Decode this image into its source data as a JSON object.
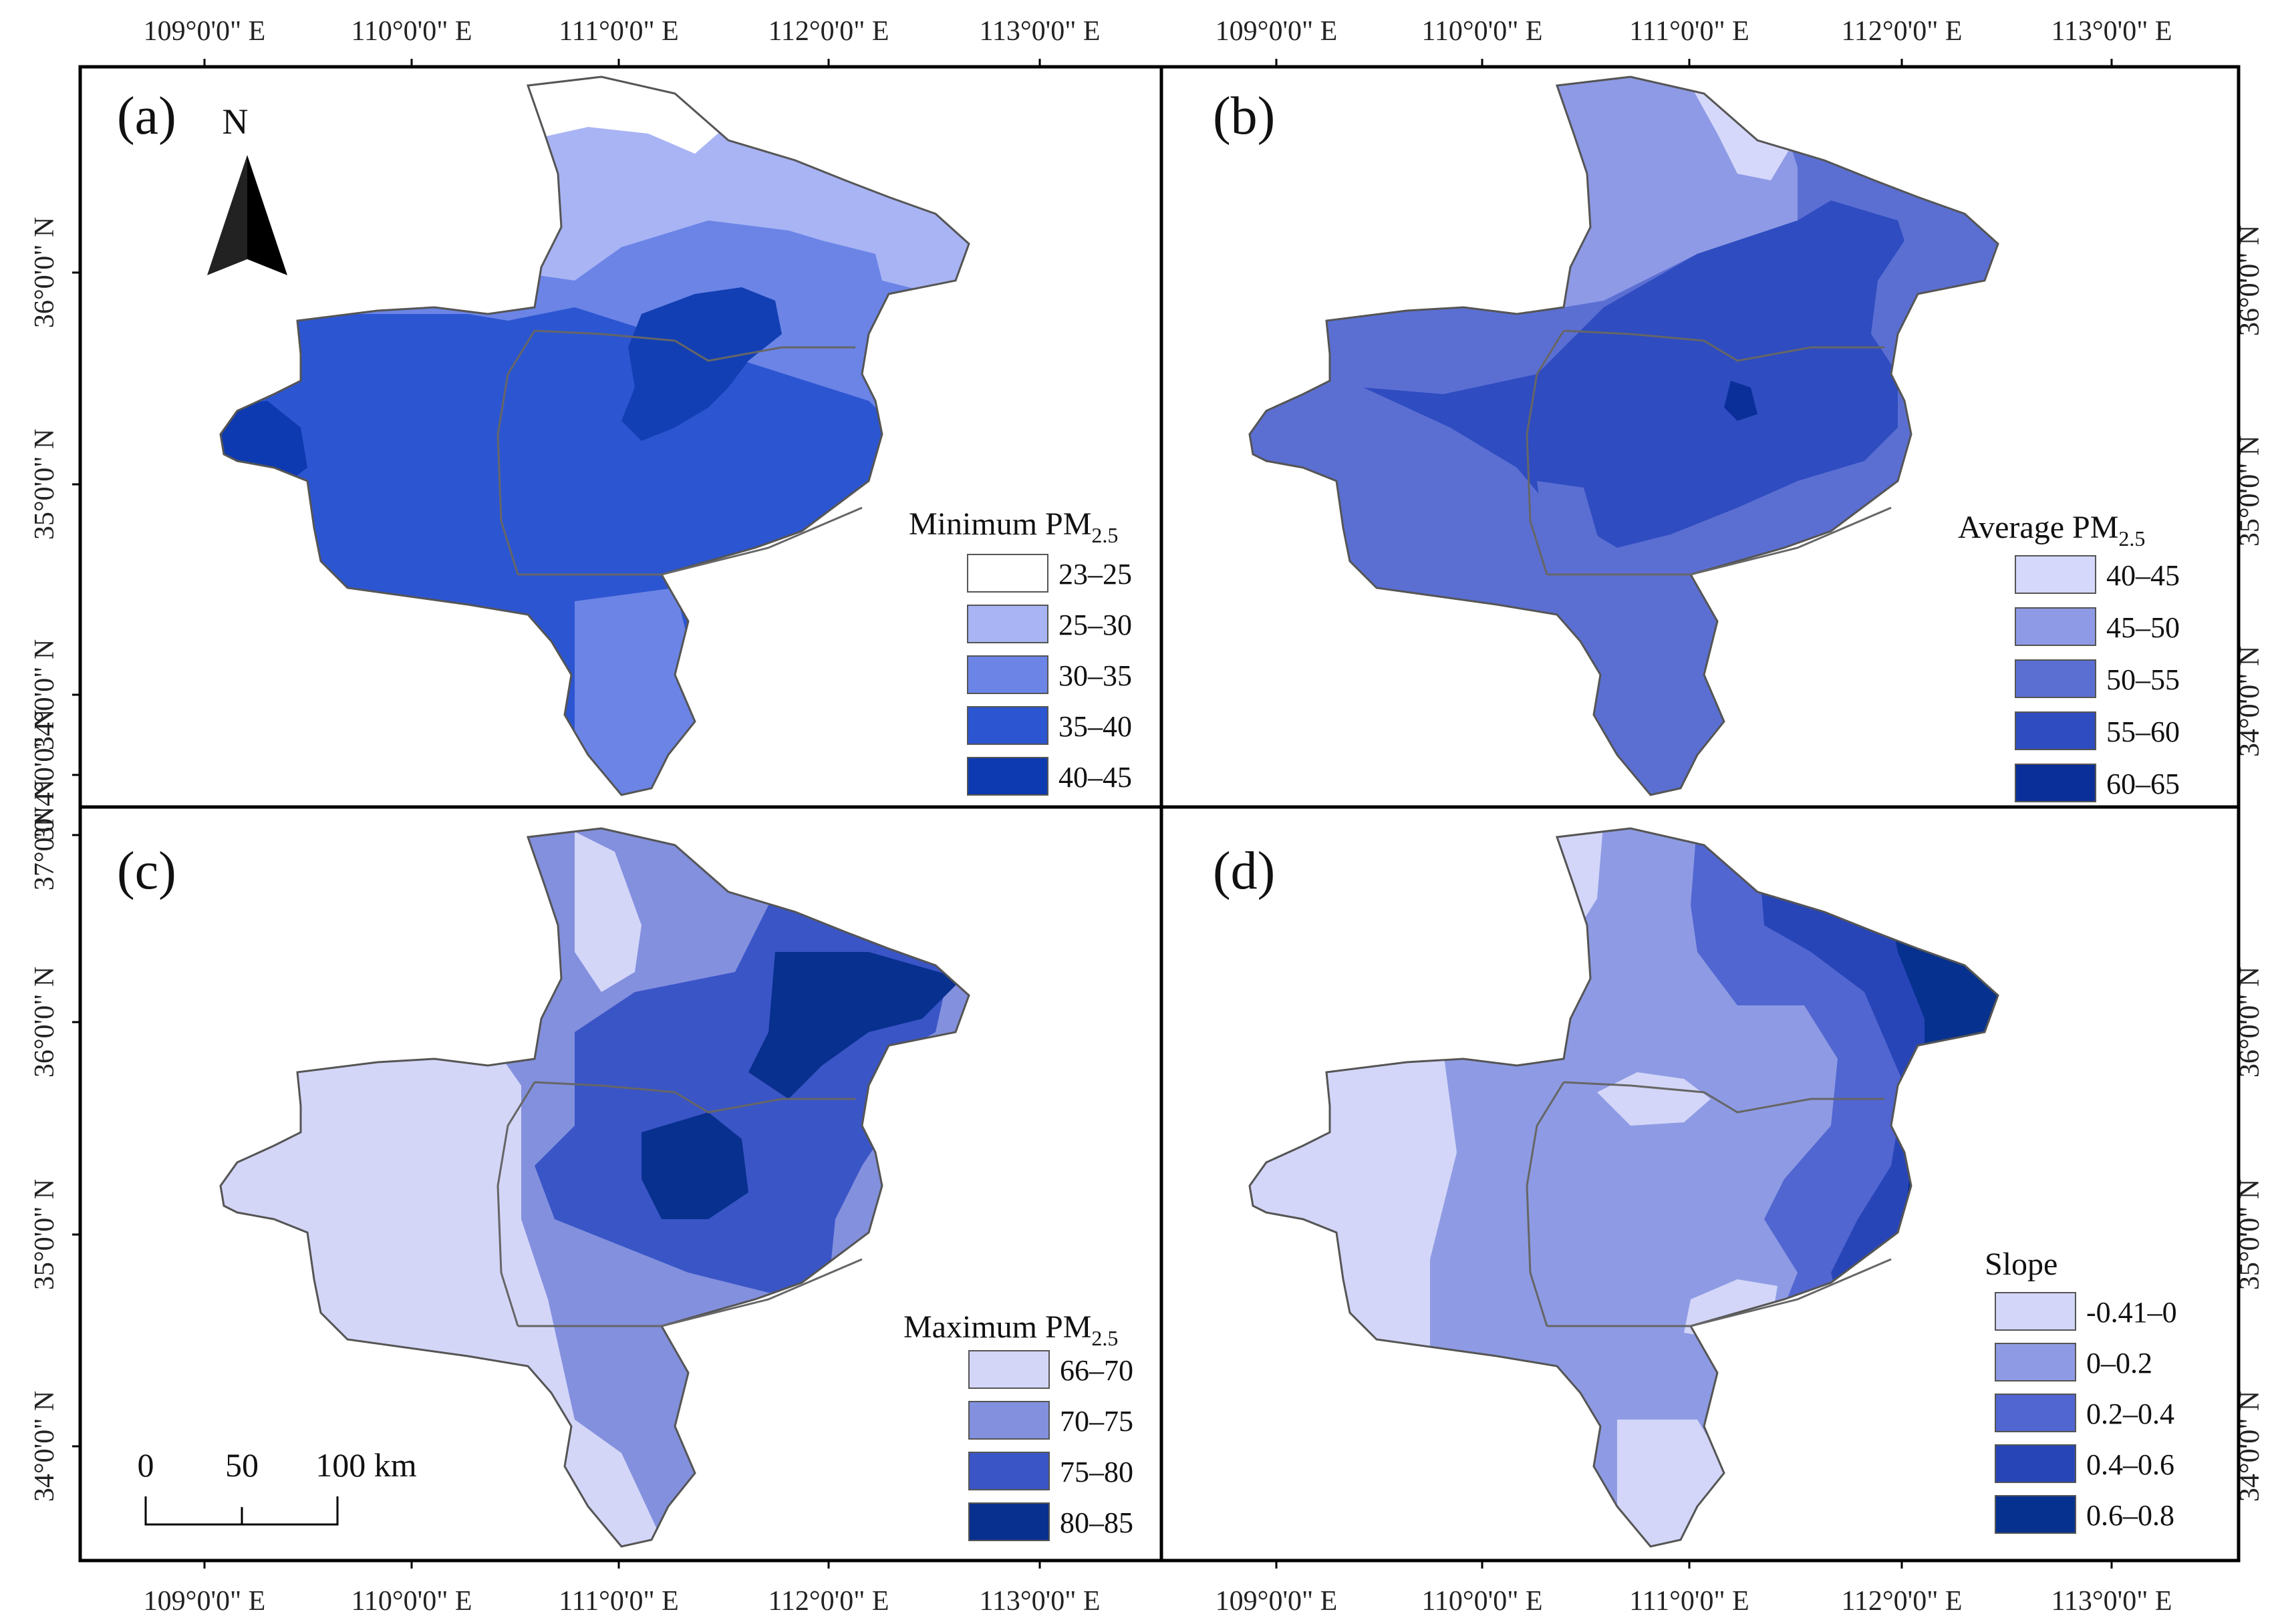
{
  "figure": {
    "x_ticks_top_left": [
      "109°0'0\" E",
      "110°0'0\" E",
      "111°0'0\" E",
      "112°0'0\" E",
      "113°0'0\" E"
    ],
    "x_ticks_top_right": [
      "109°0'0\" E",
      "110°0'0\" E",
      "111°0'0\" E",
      "112°0'0\" E",
      "113°0'0\" E"
    ],
    "x_ticks_bottom_left": [
      "109°0'0\" E",
      "110°0'0\" E",
      "111°0'0\" E",
      "112°0'0\" E",
      "113°0'0\" E"
    ],
    "x_ticks_bottom_right": [
      "109°0'0\" E",
      "110°0'0\" E",
      "111°0'0\" E",
      "112°0'0\" E",
      "113°0'0\" E"
    ],
    "y_ticks_left_top": [
      "36°0'0\" N",
      "35°0'0\" N",
      "34°0'0\" N",
      "3N4°0'0\" N"
    ],
    "y_ticks_left_bottom": [
      "37°0'0\" N",
      "36°0'0\" N",
      "35°0'0\" N",
      "34°0'0\" N"
    ],
    "y_ticks_right_top": [
      "36°0'0\" N",
      "35°0'0\" N",
      "34°0'0\" N"
    ],
    "y_ticks_right_bottom": [
      "36°0'0\" N",
      "35°0'0\" N",
      "34°0'0\" N"
    ]
  },
  "north_arrow": {
    "letter": "N"
  },
  "scale_bar": {
    "labels": [
      "0",
      "50",
      "100 km"
    ]
  },
  "panels": [
    {
      "id": "a",
      "label": "(a)",
      "legend": {
        "title": "Minimum PM",
        "subscript": "2.5",
        "items": [
          {
            "label": "23–25",
            "color": "#ffffff"
          },
          {
            "label": "25–30",
            "color": "#a8b4f4"
          },
          {
            "label": "30–35",
            "color": "#6b84e6"
          },
          {
            "label": "35–40",
            "color": "#2c55d1"
          },
          {
            "label": "40–45",
            "color": "#0d3ab0"
          }
        ]
      }
    },
    {
      "id": "b",
      "label": "(b)",
      "legend": {
        "title": "Average PM",
        "subscript": "2.5",
        "items": [
          {
            "label": "40–45",
            "color": "#d5d8fa"
          },
          {
            "label": "45–50",
            "color": "#8e9ae6"
          },
          {
            "label": "50–55",
            "color": "#5b6fd3"
          },
          {
            "label": "55–60",
            "color": "#2f4cc0"
          },
          {
            "label": "60–65",
            "color": "#0a2f99"
          }
        ]
      }
    },
    {
      "id": "c",
      "label": "(c)",
      "legend": {
        "title": "Maximum PM",
        "subscript": "2.5",
        "items": [
          {
            "label": "66–70",
            "color": "#d4d6f8"
          },
          {
            "label": "70–75",
            "color": "#8390de"
          },
          {
            "label": "75–80",
            "color": "#3a55c6"
          },
          {
            "label": "80–85",
            "color": "#08308f"
          }
        ]
      }
    },
    {
      "id": "d",
      "label": "(d)",
      "legend": {
        "title": "Slope",
        "subscript": "",
        "items": [
          {
            "label": "-0.41–0",
            "color": "#d3d6f8"
          },
          {
            "label": "0–0.2",
            "color": "#8e9be4"
          },
          {
            "label": "0.2–0.4",
            "color": "#5166d0"
          },
          {
            "label": "0.4–0.6",
            "color": "#2845b8"
          },
          {
            "label": "0.6–0.8",
            "color": "#06318e"
          }
        ]
      }
    }
  ]
}
